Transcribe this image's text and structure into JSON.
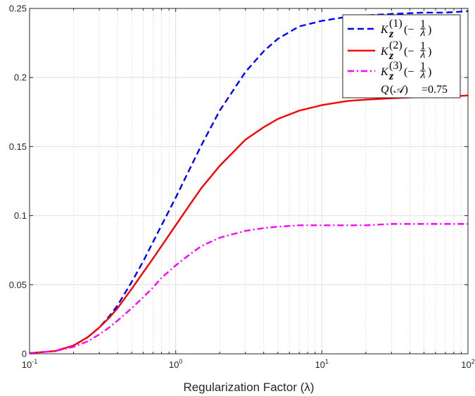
{
  "chart_data": {
    "type": "line",
    "title": "",
    "xlabel": "Regularization Factor (λ)",
    "ylabel": "",
    "xscale": "log",
    "xlim": [
      0.1,
      100
    ],
    "ylim": [
      0,
      0.25
    ],
    "grid": true,
    "legend_position": "top-right",
    "x_ticks": [
      {
        "base": "10",
        "exp": "-1",
        "value": 0.1
      },
      {
        "base": "10",
        "exp": "0",
        "value": 1
      },
      {
        "base": "10",
        "exp": "1",
        "value": 10
      },
      {
        "base": "10",
        "exp": "2",
        "value": 100
      }
    ],
    "y_ticks": [
      {
        "label": "0",
        "value": 0
      },
      {
        "label": "0.05",
        "value": 0.05
      },
      {
        "label": "0.1",
        "value": 0.1
      },
      {
        "label": "0.15",
        "value": 0.15
      },
      {
        "label": "0.2",
        "value": 0.2
      },
      {
        "label": "0.25",
        "value": 0.25
      }
    ],
    "series": [
      {
        "name": "K_z^(1)(-1/λ)",
        "color": "#0000ff",
        "dash": "dashed",
        "x": [
          0.1,
          0.15,
          0.2,
          0.25,
          0.3,
          0.35,
          0.4,
          0.5,
          0.6,
          0.7,
          0.8,
          1.0,
          1.25,
          1.5,
          2,
          3,
          4,
          5,
          7,
          10,
          15,
          20,
          30,
          50,
          70,
          100
        ],
        "y": [
          0.0005,
          0.002,
          0.006,
          0.012,
          0.019,
          0.027,
          0.035,
          0.052,
          0.067,
          0.081,
          0.093,
          0.113,
          0.134,
          0.151,
          0.176,
          0.204,
          0.219,
          0.228,
          0.237,
          0.241,
          0.244,
          0.245,
          0.246,
          0.247,
          0.247,
          0.248
        ]
      },
      {
        "name": "K_z^(2)(-1/λ)",
        "color": "#ff0000",
        "dash": "solid",
        "x": [
          0.1,
          0.15,
          0.2,
          0.25,
          0.3,
          0.35,
          0.4,
          0.5,
          0.6,
          0.7,
          0.8,
          1.0,
          1.25,
          1.5,
          2,
          3,
          4,
          5,
          7,
          10,
          15,
          20,
          30,
          50,
          70,
          100
        ],
        "y": [
          0.0005,
          0.002,
          0.006,
          0.012,
          0.019,
          0.026,
          0.033,
          0.047,
          0.059,
          0.069,
          0.078,
          0.093,
          0.108,
          0.12,
          0.136,
          0.155,
          0.164,
          0.17,
          0.176,
          0.18,
          0.183,
          0.184,
          0.185,
          0.186,
          0.186,
          0.187
        ]
      },
      {
        "name": "K_z^(3)(-1/λ)",
        "color": "#ff00ff",
        "dash": "dashdot",
        "x": [
          0.1,
          0.15,
          0.2,
          0.25,
          0.3,
          0.35,
          0.4,
          0.5,
          0.6,
          0.7,
          0.8,
          1.0,
          1.25,
          1.5,
          2,
          3,
          4,
          5,
          7,
          10,
          15,
          20,
          30,
          50,
          70,
          100
        ],
        "y": [
          0.0005,
          0.002,
          0.005,
          0.009,
          0.014,
          0.019,
          0.024,
          0.033,
          0.041,
          0.048,
          0.055,
          0.064,
          0.072,
          0.078,
          0.084,
          0.089,
          0.091,
          0.092,
          0.093,
          0.093,
          0.093,
          0.093,
          0.094,
          0.094,
          0.094,
          0.094
        ]
      }
    ],
    "legend": {
      "entries": [
        {
          "base": "K",
          "sub": "z",
          "sup": "(1)",
          "arg": "(−",
          "num": "1",
          "den": "λ",
          "close": ")"
        },
        {
          "base": "K",
          "sub": "z",
          "sup": "(2)",
          "arg": "(−",
          "num": "1",
          "den": "λ",
          "close": ")"
        },
        {
          "base": "K",
          "sub": "z",
          "sup": "(3)",
          "arg": "(−",
          "num": "1",
          "den": "λ",
          "close": ")"
        }
      ],
      "annotation": {
        "lhs": "Q",
        "arg": "(𝒜)",
        "value": "=0.75"
      }
    }
  }
}
